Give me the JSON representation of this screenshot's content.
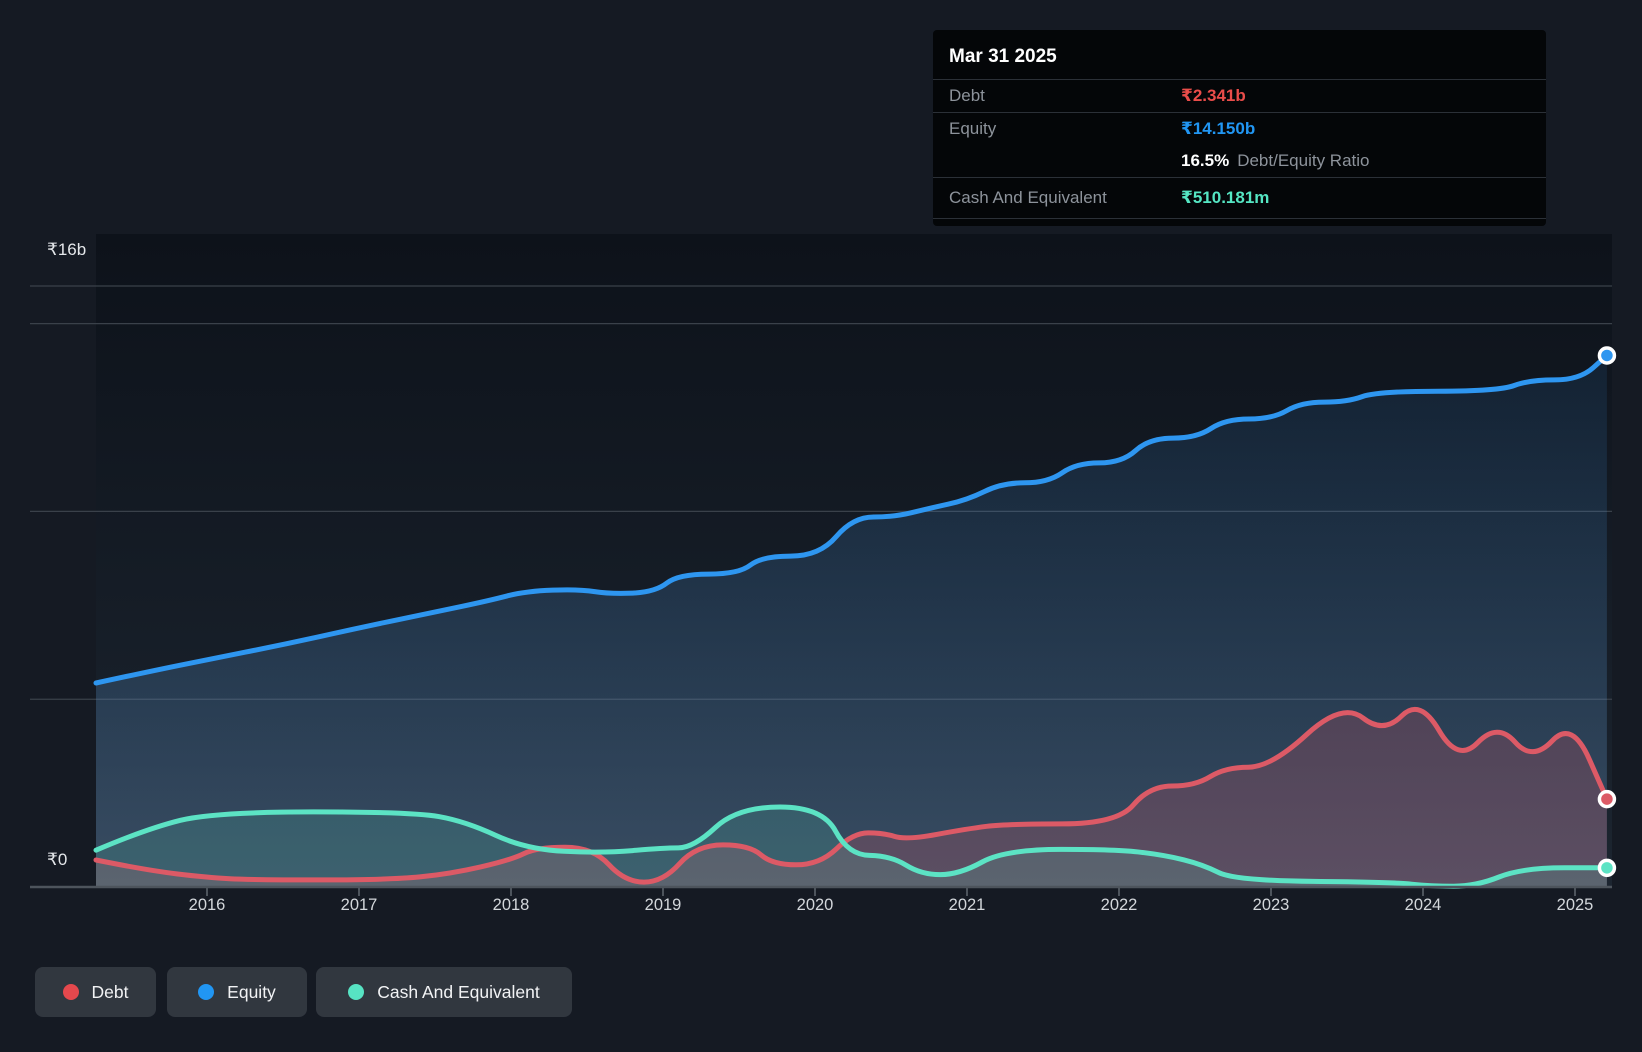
{
  "tooltip": {
    "date": "Mar 31 2025",
    "rows": [
      {
        "type": "metric",
        "label": "Debt",
        "value": "₹2.341b",
        "value_color": "#ea4d4a"
      },
      {
        "type": "metric",
        "label": "Equity",
        "value": "₹14.150b",
        "value_color": "#2196f3"
      },
      {
        "type": "ratio",
        "value": "16.5%",
        "label": "Debt/Equity Ratio"
      },
      {
        "type": "metric",
        "label": "Cash And Equivalent",
        "value": "₹510.181m",
        "value_color": "#55e6c3"
      }
    ]
  },
  "axis": {
    "y_top_label": "₹16b",
    "y_zero_label": "₹0",
    "years": [
      "2016",
      "2017",
      "2018",
      "2019",
      "2020",
      "2021",
      "2022",
      "2023",
      "2024",
      "2025"
    ]
  },
  "legend": [
    {
      "label": "Debt",
      "color": "#e5484d"
    },
    {
      "label": "Equity",
      "color": "#2196f3"
    },
    {
      "label": "Cash And Equivalent",
      "color": "#57e3c3"
    }
  ],
  "chart_data": {
    "type": "area",
    "title": "Debt, Equity and Cash history",
    "x_unit": "decimal year",
    "y_unit": "INR billions",
    "x_axis": {
      "ticks": [
        2016,
        2017,
        2018,
        2019,
        2020,
        2021,
        2022,
        2023,
        2024,
        2025
      ],
      "data_start": 2015.27,
      "data_end": 2025.21
    },
    "y_axis": {
      "min": 0,
      "max": 16,
      "gridline_values": [
        0,
        5,
        10,
        15,
        16
      ],
      "top_label": "₹16b",
      "zero_label": "₹0"
    },
    "legend_position": "bottom-left",
    "series": [
      {
        "name": "Equity",
        "color": "#2e96f0",
        "fill_top": "rgba(50,140,225,0.10)",
        "fill_bottom": "rgba(125,170,215,0.30)",
        "points": [
          [
            2015.27,
            5.43
          ],
          [
            2015.6,
            5.72
          ],
          [
            2016,
            6.05
          ],
          [
            2016.5,
            6.45
          ],
          [
            2017,
            6.9
          ],
          [
            2017.5,
            7.32
          ],
          [
            2017.85,
            7.62
          ],
          [
            2018.1,
            7.88
          ],
          [
            2018.45,
            7.93
          ],
          [
            2018.65,
            7.8
          ],
          [
            2018.95,
            7.85
          ],
          [
            2019.1,
            8.33
          ],
          [
            2019.5,
            8.33
          ],
          [
            2019.65,
            8.81
          ],
          [
            2020.03,
            8.81
          ],
          [
            2020.25,
            9.85
          ],
          [
            2020.52,
            9.85
          ],
          [
            2020.75,
            10.08
          ],
          [
            2021,
            10.3
          ],
          [
            2021.23,
            10.76
          ],
          [
            2021.53,
            10.76
          ],
          [
            2021.72,
            11.29
          ],
          [
            2022.02,
            11.29
          ],
          [
            2022.2,
            11.95
          ],
          [
            2022.51,
            11.95
          ],
          [
            2022.7,
            12.46
          ],
          [
            2023.01,
            12.46
          ],
          [
            2023.2,
            12.91
          ],
          [
            2023.5,
            12.91
          ],
          [
            2023.7,
            13.2
          ],
          [
            2024.5,
            13.2
          ],
          [
            2024.7,
            13.5
          ],
          [
            2025.03,
            13.5
          ],
          [
            2025.21,
            14.15
          ]
        ]
      },
      {
        "name": "Debt",
        "color": "#dc5a66",
        "fill": "rgba(219,85,102,0.22)",
        "points": [
          [
            2015.27,
            0.72
          ],
          [
            2015.6,
            0.45
          ],
          [
            2016,
            0.25
          ],
          [
            2016.3,
            0.19
          ],
          [
            2017.2,
            0.19
          ],
          [
            2017.6,
            0.35
          ],
          [
            2018,
            0.72
          ],
          [
            2018.17,
            1.06
          ],
          [
            2018.54,
            1.06
          ],
          [
            2018.75,
            0.13
          ],
          [
            2019,
            0.13
          ],
          [
            2019.22,
            1.12
          ],
          [
            2019.57,
            1.12
          ],
          [
            2019.72,
            0.59
          ],
          [
            2020.03,
            0.59
          ],
          [
            2020.25,
            1.44
          ],
          [
            2020.45,
            1.44
          ],
          [
            2020.6,
            1.25
          ],
          [
            2021,
            1.55
          ],
          [
            2021.26,
            1.68
          ],
          [
            2021.99,
            1.68
          ],
          [
            2022.2,
            2.69
          ],
          [
            2022.5,
            2.69
          ],
          [
            2022.7,
            3.19
          ],
          [
            2023,
            3.19
          ],
          [
            2023.47,
            4.93
          ],
          [
            2023.74,
            4.07
          ],
          [
            2023.98,
            5.04
          ],
          [
            2024.23,
            3.3
          ],
          [
            2024.49,
            4.39
          ],
          [
            2024.72,
            3.33
          ],
          [
            2024.98,
            4.45
          ],
          [
            2025.21,
            2.34
          ]
        ]
      },
      {
        "name": "Cash And Equivalent",
        "color": "#5ce3c4",
        "fill": "rgba(84,222,190,0.15)",
        "points": [
          [
            2015.27,
            0.98
          ],
          [
            2015.6,
            1.55
          ],
          [
            2016.05,
            2.0
          ],
          [
            2017.35,
            2.0
          ],
          [
            2017.7,
            1.75
          ],
          [
            2018.1,
            1.0
          ],
          [
            2018.6,
            0.9
          ],
          [
            2019,
            1.04
          ],
          [
            2019.2,
            1.04
          ],
          [
            2019.49,
            2.13
          ],
          [
            2020.05,
            2.13
          ],
          [
            2020.22,
            0.85
          ],
          [
            2020.5,
            0.83
          ],
          [
            2020.7,
            0.33
          ],
          [
            2020.95,
            0.33
          ],
          [
            2021.25,
            1.0
          ],
          [
            2021.99,
            1.0
          ],
          [
            2022.3,
            0.85
          ],
          [
            2022.55,
            0.6
          ],
          [
            2022.76,
            0.17
          ],
          [
            2023.8,
            0.13
          ],
          [
            2024.05,
            0.02
          ],
          [
            2024.35,
            0.02
          ],
          [
            2024.65,
            0.51
          ],
          [
            2025.21,
            0.51
          ]
        ]
      }
    ],
    "endpoint_values": {
      "Debt": "₹2.341b",
      "Equity": "₹14.150b",
      "Cash And Equivalent": "₹510.181m"
    },
    "endpoint_date": "Mar 31 2025"
  },
  "style": {
    "page_bg": "#151a23",
    "plot_bg_top": "#0d121a",
    "plot_bg_bottom": "#1c2530",
    "gridline_color": "#3a414a",
    "axis_line_color": "#4d545c",
    "tooltip_bg": "#040608",
    "tooltip_label_color": "#8d939b",
    "legend_chip_bg": "#31373f"
  }
}
